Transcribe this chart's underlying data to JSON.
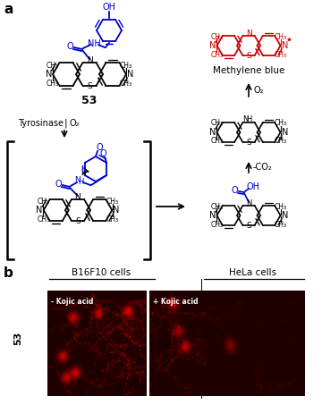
{
  "background_color": "#ffffff",
  "blue_color": "#0000cc",
  "red_color": "#cc0000",
  "black_color": "#000000",
  "label_a": "a",
  "label_b": "b",
  "label_b16f10": "B16F10 cells",
  "label_hela": "HeLa cells",
  "label_minus_kojic": "- Kojic acid",
  "label_plus_kojic": "+ Kojic acid",
  "label_methylene_blue": "Methylene blue",
  "label_tyrosinase": "Tyrosinase",
  "label_o2": "O₂",
  "label_co2": "-CO₂",
  "label_53": "53",
  "figw": 3.6,
  "figh": 4.53,
  "dpi": 100
}
